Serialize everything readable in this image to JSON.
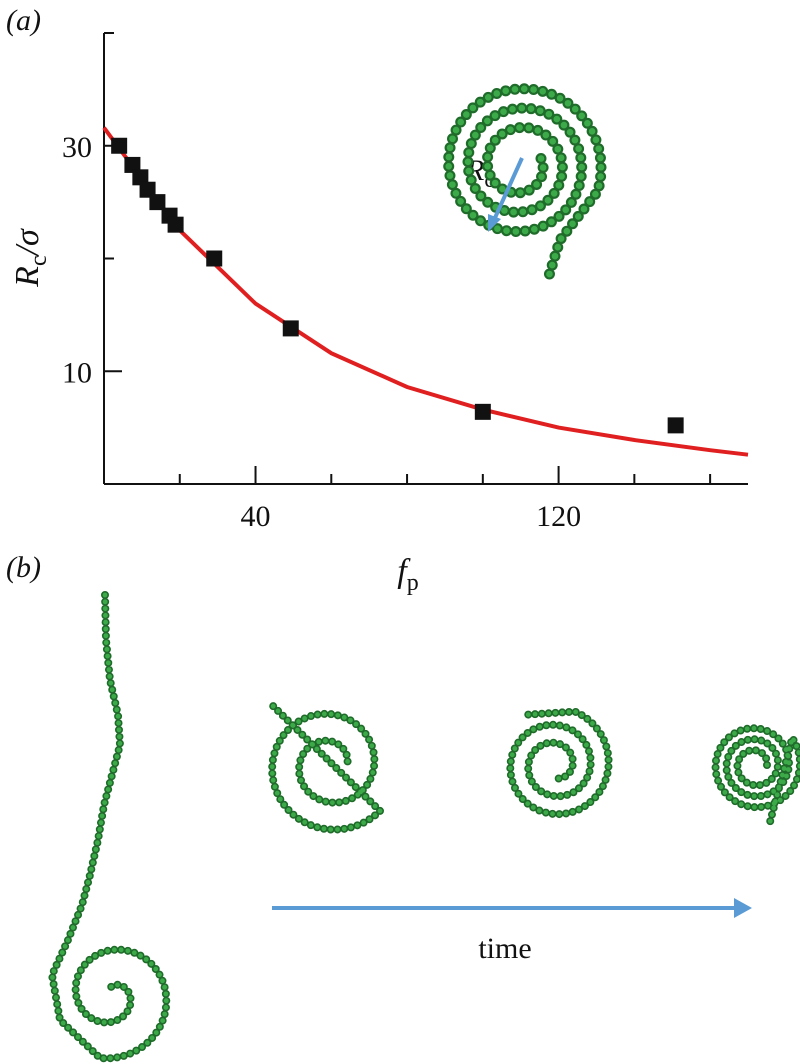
{
  "panel_labels": [
    "(a)",
    "(b)"
  ],
  "chart_data": {
    "type": "scatter",
    "ylabel": [
      "R",
      "c",
      "/σ"
    ],
    "xlabel": [
      "f",
      "p"
    ],
    "inset_label": [
      "R",
      "c"
    ],
    "xlim": [
      0,
      170
    ],
    "ylim": [
      0,
      40
    ],
    "xticks": [
      40,
      120
    ],
    "xminor_ticks": [
      20,
      60,
      80,
      100,
      140,
      160
    ],
    "yticks": [
      10,
      30
    ],
    "yminor_ticks": [
      20,
      40
    ],
    "series": [
      {
        "kind": "points",
        "color": "#111111",
        "x": [
          4,
          7.5,
          9.6,
          11.5,
          14.1,
          17.3,
          18.9,
          29.1,
          49.3,
          100,
          150.9
        ],
        "values": [
          30,
          28.3,
          27.2,
          26.1,
          25.0,
          23.8,
          23.0,
          20.0,
          13.8,
          6.4,
          5.2
        ]
      },
      {
        "kind": "curve",
        "color": "#e02020",
        "x": [
          0,
          20,
          40,
          60,
          80,
          100,
          120,
          140,
          160,
          170
        ],
        "values": [
          31.6,
          22.5,
          16.0,
          11.6,
          8.6,
          6.6,
          5.0,
          3.9,
          3.0,
          2.6
        ]
      }
    ]
  },
  "time_label": "time"
}
